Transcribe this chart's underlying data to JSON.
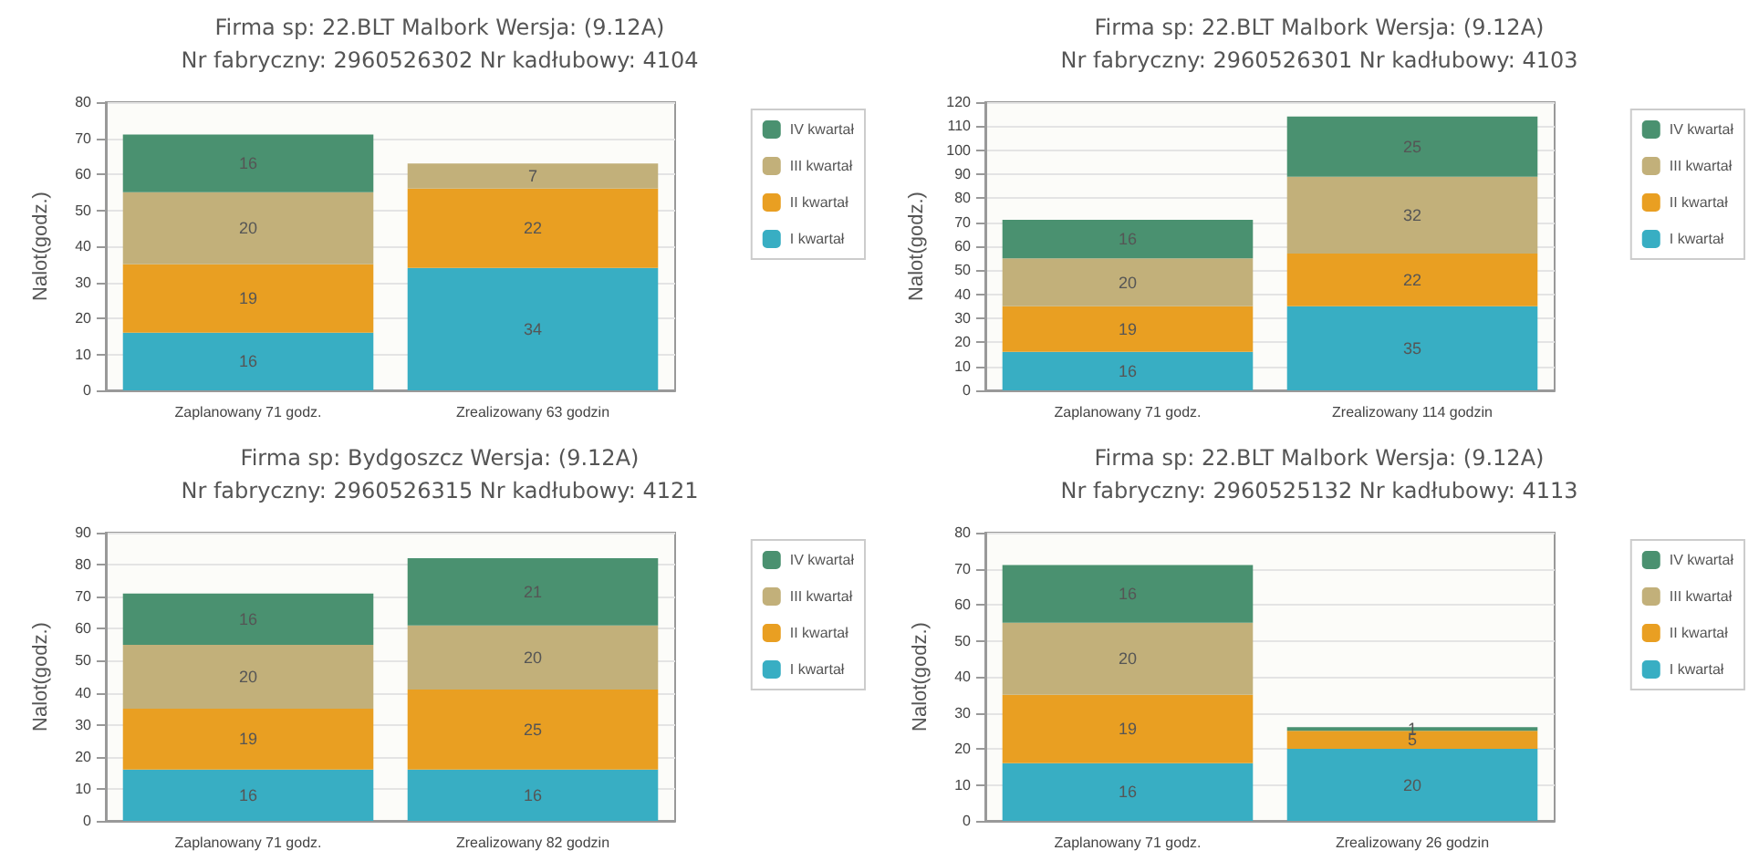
{
  "chart_data": [
    {
      "type": "bar",
      "title": "Firma sp: 22.BLT Malbork Wersja: (9.12A)",
      "subtitle": "Nr fabryczny: 2960526302 Nr kadłubowy: 4104",
      "ylabel": "Nalot(godz.)",
      "categories": [
        "Zaplanowany 71 godz.",
        "Zrealizowany 63 godzin"
      ],
      "stacked": true,
      "data_labels": true,
      "grid": "y",
      "legend": "right",
      "ylim": [
        0,
        80
      ],
      "yticks": [
        0,
        10,
        20,
        30,
        40,
        50,
        60,
        70,
        80
      ],
      "series": [
        {
          "name": "I kwartał",
          "color": "#38aec3",
          "values": [
            16,
            34
          ]
        },
        {
          "name": "II kwartał",
          "color": "#e99f22",
          "values": [
            19,
            22
          ]
        },
        {
          "name": "III kwartał",
          "color": "#c2b07a",
          "values": [
            20,
            7
          ]
        },
        {
          "name": "IV kwartał",
          "color": "#4a9170",
          "values": [
            16,
            null
          ]
        }
      ]
    },
    {
      "type": "bar",
      "title": "Firma sp: 22.BLT Malbork Wersja: (9.12A)",
      "subtitle": "Nr fabryczny: 2960526301 Nr kadłubowy: 4103",
      "ylabel": "Nalot(godz.)",
      "categories": [
        "Zaplanowany 71 godz.",
        "Zrealizowany 114 godzin"
      ],
      "stacked": true,
      "data_labels": true,
      "grid": "y",
      "legend": "right",
      "ylim": [
        0,
        120
      ],
      "yticks": [
        0,
        10,
        20,
        30,
        40,
        50,
        60,
        70,
        80,
        90,
        100,
        110,
        120
      ],
      "series": [
        {
          "name": "I kwartał",
          "color": "#38aec3",
          "values": [
            16,
            35
          ]
        },
        {
          "name": "II kwartał",
          "color": "#e99f22",
          "values": [
            19,
            22
          ]
        },
        {
          "name": "III kwartał",
          "color": "#c2b07a",
          "values": [
            20,
            32
          ]
        },
        {
          "name": "IV kwartał",
          "color": "#4a9170",
          "values": [
            16,
            25
          ]
        }
      ]
    },
    {
      "type": "bar",
      "title": "Firma sp: Bydgoszcz Wersja: (9.12A)",
      "subtitle": "Nr fabryczny: 2960526315 Nr kadłubowy: 4121",
      "ylabel": "Nalot(godz.)",
      "categories": [
        "Zaplanowany 71 godz.",
        "Zrealizowany 82 godzin"
      ],
      "stacked": true,
      "data_labels": true,
      "grid": "y",
      "legend": "right",
      "ylim": [
        0,
        90
      ],
      "yticks": [
        0,
        10,
        20,
        30,
        40,
        50,
        60,
        70,
        80,
        90
      ],
      "series": [
        {
          "name": "I kwartał",
          "color": "#38aec3",
          "values": [
            16,
            16
          ]
        },
        {
          "name": "II kwartał",
          "color": "#e99f22",
          "values": [
            19,
            25
          ]
        },
        {
          "name": "III kwartał",
          "color": "#c2b07a",
          "values": [
            20,
            20
          ]
        },
        {
          "name": "IV kwartał",
          "color": "#4a9170",
          "values": [
            16,
            21
          ]
        }
      ]
    },
    {
      "type": "bar",
      "title": "Firma sp: 22.BLT Malbork Wersja: (9.12A)",
      "subtitle": "Nr fabryczny: 2960525132 Nr kadłubowy: 4113",
      "ylabel": "Nalot(godz.)",
      "categories": [
        "Zaplanowany 71 godz.",
        "Zrealizowany 26 godzin"
      ],
      "stacked": true,
      "data_labels": true,
      "grid": "y",
      "legend": "right",
      "ylim": [
        0,
        80
      ],
      "yticks": [
        0,
        10,
        20,
        30,
        40,
        50,
        60,
        70,
        80
      ],
      "series": [
        {
          "name": "I kwartał",
          "color": "#38aec3",
          "values": [
            16,
            20
          ]
        },
        {
          "name": "II kwartał",
          "color": "#e99f22",
          "values": [
            19,
            5
          ]
        },
        {
          "name": "III kwartał",
          "color": "#c2b07a",
          "values": [
            20,
            null
          ]
        },
        {
          "name": "IV kwartał",
          "color": "#4a9170",
          "values": [
            16,
            1
          ]
        }
      ]
    }
  ]
}
